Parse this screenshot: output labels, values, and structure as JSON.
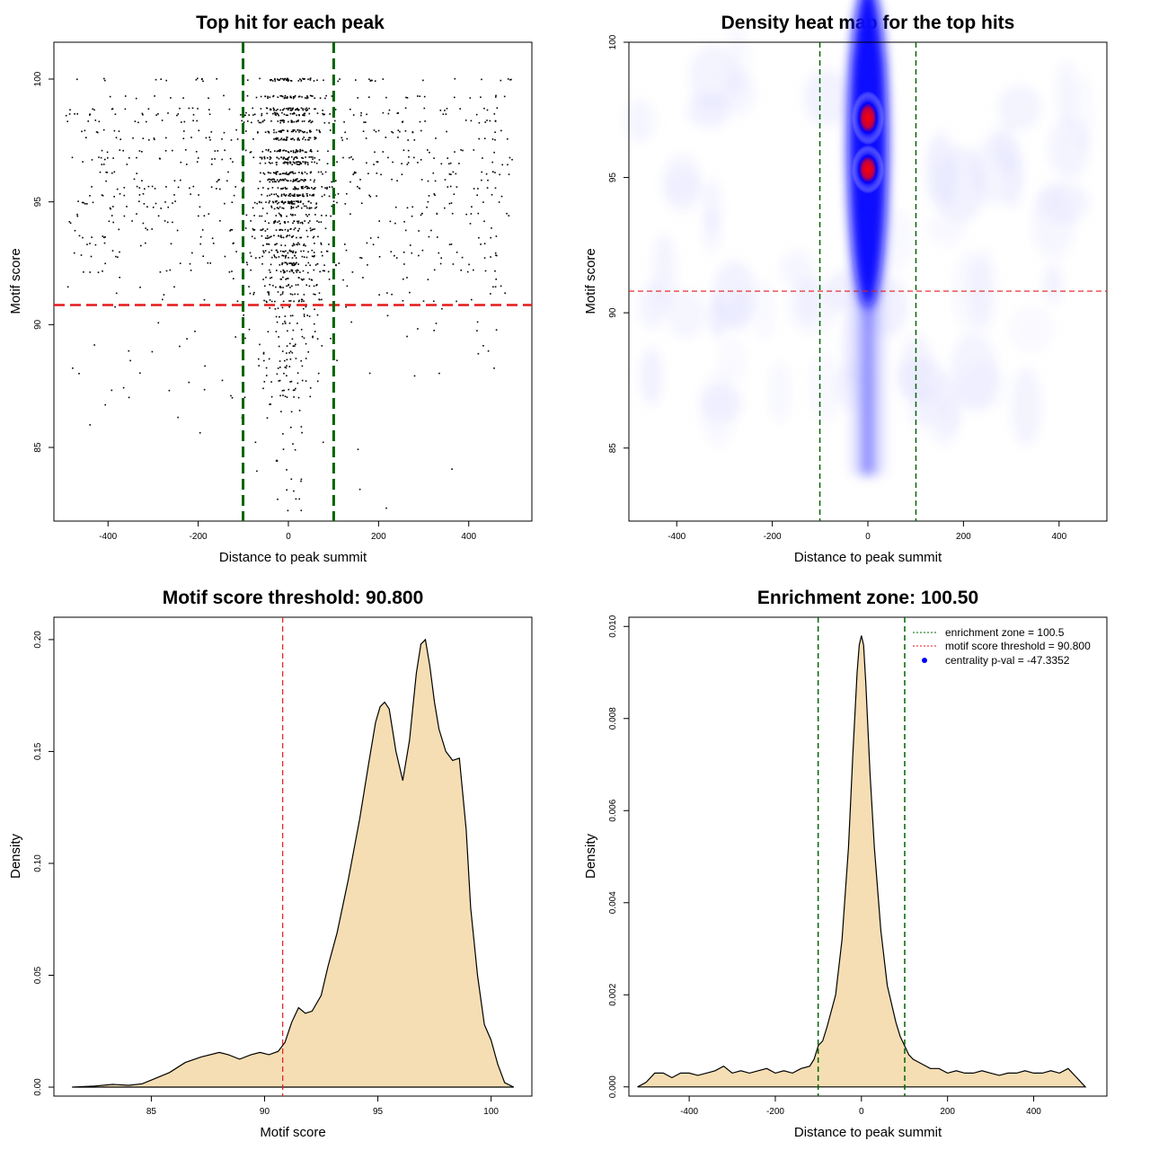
{
  "colors": {
    "threshold_line": "#e41a1c",
    "zone_line": "#006400",
    "density_fill": "#f5deb3",
    "heat_low": "#ffffff",
    "heat_mid": "#0000ff",
    "heat_high": "#ff0000",
    "points": "#000000",
    "legend_dot": "#0000ff"
  },
  "chart_data": [
    {
      "id": "scatter",
      "type": "scatter",
      "title": "Top hit for each peak",
      "xlabel": "Distance to peak summit",
      "ylabel": "Motif score",
      "xlim": [
        -520,
        540
      ],
      "ylim": [
        82,
        101.5
      ],
      "xticks": [
        -400,
        -200,
        0,
        200,
        400
      ],
      "yticks": [
        85,
        90,
        95,
        100
      ],
      "hline": 90.8,
      "vlines": [
        -100.5,
        100.5
      ],
      "score_levels": [
        100,
        99.3,
        98.8,
        98.6,
        98.3,
        97.9,
        97.6,
        97.1,
        96.8,
        96.6,
        96.2,
        95.9,
        95.6,
        95.3,
        95,
        94.8,
        94.5,
        94.2,
        93.9,
        93.6,
        93.3,
        93,
        92.8,
        92.5,
        92.2,
        91.9,
        91.6,
        91.3,
        91,
        90.7,
        90.4,
        90.1,
        89.8,
        89.5,
        89.2,
        88.9,
        88.6,
        88.3,
        88,
        87.7,
        87.4,
        87.1,
        86.8,
        86.5,
        86.2,
        85.9,
        85.6,
        85.2,
        84.9,
        84.5,
        84.1,
        83.7,
        83.3,
        82.9,
        82.5
      ]
    },
    {
      "id": "heatmap",
      "type": "heatmap",
      "title": "Density heat map for the top hits",
      "xlabel": "Distance to peak summit",
      "ylabel": "Motif score",
      "xlim": [
        -500,
        500
      ],
      "ylim": [
        82.3,
        100
      ],
      "xticks": [
        -400,
        -200,
        0,
        200,
        400
      ],
      "yticks": [
        85,
        90,
        95,
        100
      ],
      "hline": 90.8,
      "vlines": [
        -100.5,
        100.5
      ],
      "hotspots": [
        {
          "x": 0,
          "y": 97.2,
          "level": 1.0
        },
        {
          "x": 0,
          "y": 95.3,
          "level": 0.9
        }
      ]
    },
    {
      "id": "score_density",
      "type": "area",
      "title": "Motif score threshold: 90.800",
      "xlabel": "Motif score",
      "ylabel": "Density",
      "xlim": [
        80.7,
        101.8
      ],
      "ylim": [
        -0.004,
        0.21
      ],
      "xticks": [
        85,
        90,
        95,
        100
      ],
      "yticks": [
        0.0,
        0.05,
        0.1,
        0.15,
        0.2
      ],
      "ytick_labels": [
        "0.00",
        "0.05",
        "0.10",
        "0.15",
        "0.20"
      ],
      "vline": 90.8,
      "x": [
        81.5,
        82.5,
        83.3,
        84,
        84.6,
        85.2,
        85.8,
        86.5,
        87.2,
        88,
        88.4,
        88.9,
        89.4,
        89.8,
        90.2,
        90.6,
        90.9,
        91.2,
        91.5,
        91.8,
        92.1,
        92.5,
        92.8,
        93.2,
        93.7,
        94.2,
        94.6,
        94.9,
        95.1,
        95.3,
        95.5,
        95.8,
        96.1,
        96.4,
        96.7,
        96.9,
        97.1,
        97.3,
        97.5,
        97.7,
        98,
        98.3,
        98.6,
        98.9,
        99.1,
        99.4,
        99.7,
        100,
        100.3,
        100.6,
        101
      ],
      "y": [
        0,
        0.0005,
        0.0012,
        0.0008,
        0.0015,
        0.004,
        0.0065,
        0.011,
        0.0135,
        0.0155,
        0.0145,
        0.0125,
        0.0145,
        0.0155,
        0.0145,
        0.016,
        0.02,
        0.029,
        0.0355,
        0.033,
        0.034,
        0.041,
        0.054,
        0.069,
        0.093,
        0.12,
        0.145,
        0.163,
        0.17,
        0.172,
        0.169,
        0.15,
        0.137,
        0.155,
        0.185,
        0.198,
        0.2,
        0.188,
        0.172,
        0.16,
        0.15,
        0.146,
        0.147,
        0.115,
        0.08,
        0.05,
        0.028,
        0.021,
        0.01,
        0.002,
        0
      ]
    },
    {
      "id": "distance_density",
      "type": "area",
      "title": "Enrichment zone: 100.50",
      "xlabel": "Distance to peak summit",
      "ylabel": "Density",
      "xlim": [
        -540,
        570
      ],
      "ylim": [
        -0.0002,
        0.0102
      ],
      "xticks": [
        -400,
        -200,
        0,
        200,
        400
      ],
      "yticks": [
        0.0,
        0.002,
        0.004,
        0.006,
        0.008,
        0.01
      ],
      "ytick_labels": [
        "0.000",
        "0.002",
        "0.004",
        "0.006",
        "0.008",
        "0.010"
      ],
      "vlines": [
        -100.5,
        100.5
      ],
      "legend": [
        {
          "label": "enrichment zone = 100.5",
          "style": "green-dotted"
        },
        {
          "label": "motif score threshold = 90.800",
          "style": "red-dotted"
        },
        {
          "label": "centrality p-val = -47.3352",
          "style": "blue-dot"
        }
      ],
      "x": [
        -520,
        -500,
        -480,
        -460,
        -440,
        -420,
        -400,
        -380,
        -360,
        -340,
        -320,
        -300,
        -280,
        -260,
        -240,
        -220,
        -200,
        -180,
        -160,
        -140,
        -120,
        -110,
        -100,
        -90,
        -80,
        -60,
        -45,
        -30,
        -20,
        -10,
        -5,
        0,
        5,
        10,
        20,
        30,
        45,
        60,
        80,
        90,
        100,
        110,
        120,
        140,
        160,
        180,
        200,
        220,
        240,
        260,
        280,
        300,
        320,
        340,
        360,
        380,
        400,
        420,
        440,
        460,
        480,
        500,
        520
      ],
      "y": [
        0,
        0.0001,
        0.0003,
        0.0003,
        0.0002,
        0.0003,
        0.0003,
        0.00025,
        0.0003,
        0.00035,
        0.00045,
        0.0003,
        0.00035,
        0.0003,
        0.00035,
        0.0004,
        0.0003,
        0.00035,
        0.0003,
        0.0004,
        0.00045,
        0.0006,
        0.0009,
        0.001,
        0.0013,
        0.002,
        0.0032,
        0.0052,
        0.0072,
        0.009,
        0.0096,
        0.0098,
        0.0096,
        0.0088,
        0.0068,
        0.0052,
        0.0034,
        0.0022,
        0.0014,
        0.0011,
        0.0009,
        0.0007,
        0.0006,
        0.0005,
        0.0004,
        0.0004,
        0.0003,
        0.00035,
        0.0003,
        0.0003,
        0.00035,
        0.0003,
        0.00025,
        0.0003,
        0.0003,
        0.00035,
        0.0003,
        0.0003,
        0.00035,
        0.0003,
        0.0004,
        0.0002,
        0
      ]
    }
  ]
}
